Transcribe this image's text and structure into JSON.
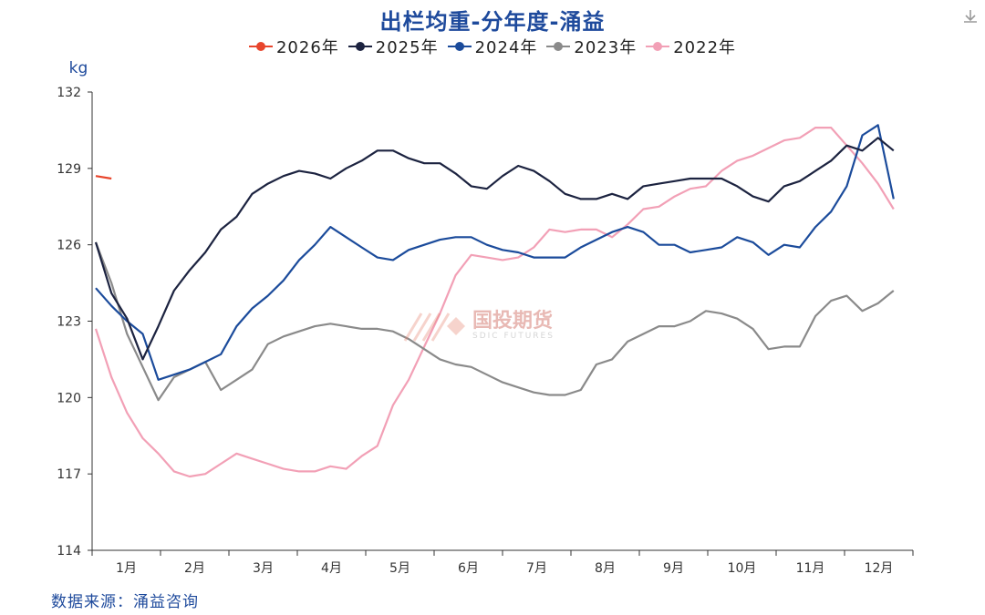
{
  "chart_data": {
    "type": "line",
    "title": "出栏均重-分年度-涌益",
    "ylabel": "kg",
    "ylim": [
      114,
      132
    ],
    "yticks": [
      114,
      117,
      120,
      123,
      126,
      129,
      132
    ],
    "xlim": [
      0,
      52
    ],
    "categories": [
      "1月",
      "2月",
      "3月",
      "4月",
      "5月",
      "6月",
      "7月",
      "8月",
      "9月",
      "10月",
      "11月",
      "12月"
    ],
    "grid": false,
    "legend": "top",
    "series": [
      {
        "name": "2026年",
        "color": "#e8452c",
        "x": [
          0,
          1
        ],
        "values": [
          128.7,
          128.6
        ]
      },
      {
        "name": "2025年",
        "color": "#1c2340",
        "x": [
          0,
          1,
          2,
          3,
          4,
          5,
          6,
          7,
          8,
          9,
          10,
          11,
          12,
          13,
          14,
          15,
          16,
          17,
          18,
          19,
          20,
          21,
          22,
          23,
          24,
          25,
          26,
          27,
          28,
          29,
          30,
          31,
          32,
          33,
          34,
          35,
          36,
          37,
          38,
          39,
          40,
          41,
          42,
          43,
          44,
          45,
          46,
          47,
          48,
          49,
          50,
          51
        ],
        "values": [
          126.1,
          124.1,
          123.1,
          121.5,
          122.8,
          124.2,
          125.0,
          125.7,
          126.6,
          127.1,
          128.0,
          128.4,
          128.7,
          128.9,
          128.8,
          128.6,
          129.0,
          129.3,
          129.7,
          129.7,
          129.4,
          129.2,
          129.2,
          128.8,
          128.3,
          128.2,
          128.7,
          129.1,
          128.9,
          128.5,
          128.0,
          127.8,
          127.8,
          128.0,
          127.8,
          128.3,
          128.4,
          128.5,
          128.6,
          128.6,
          128.6,
          128.3,
          127.9,
          127.7,
          128.3,
          128.5,
          128.9,
          129.3,
          129.9,
          129.7,
          130.2,
          129.7
        ]
      },
      {
        "name": "2024年",
        "color": "#1b4b9b",
        "x": [
          0,
          1,
          2,
          3,
          4,
          5,
          6,
          7,
          8,
          9,
          10,
          11,
          12,
          13,
          14,
          15,
          16,
          17,
          18,
          19,
          20,
          21,
          22,
          23,
          24,
          25,
          26,
          27,
          28,
          29,
          30,
          31,
          32,
          33,
          34,
          35,
          36,
          37,
          38,
          39,
          40,
          41,
          42,
          43,
          44,
          45,
          46,
          47,
          48,
          49,
          50,
          51
        ],
        "values": [
          124.3,
          123.6,
          123.0,
          122.5,
          120.7,
          120.9,
          121.1,
          121.4,
          121.7,
          122.8,
          123.5,
          124.0,
          124.6,
          125.4,
          126.0,
          126.7,
          126.3,
          125.9,
          125.5,
          125.4,
          125.8,
          126.0,
          126.2,
          126.3,
          126.3,
          126.0,
          125.8,
          125.7,
          125.5,
          125.5,
          125.5,
          125.9,
          126.2,
          126.5,
          126.7,
          126.5,
          126.0,
          126.0,
          125.7,
          125.8,
          125.9,
          126.3,
          126.1,
          125.6,
          126.0,
          125.9,
          126.7,
          127.3,
          128.3,
          130.3,
          130.7,
          127.8
        ]
      },
      {
        "name": "2023年",
        "color": "#8a8a8a",
        "x": [
          0,
          1,
          2,
          3,
          4,
          5,
          6,
          7,
          8,
          9,
          10,
          11,
          12,
          13,
          14,
          15,
          16,
          17,
          18,
          19,
          20,
          21,
          22,
          23,
          24,
          25,
          26,
          27,
          28,
          29,
          30,
          31,
          32,
          33,
          34,
          35,
          36,
          37,
          38,
          39,
          40,
          41,
          42,
          43,
          44,
          45,
          46,
          47,
          48,
          49,
          50,
          51
        ],
        "values": [
          126.1,
          124.5,
          122.5,
          121.2,
          119.9,
          120.8,
          121.1,
          121.4,
          120.3,
          120.7,
          121.1,
          122.1,
          122.4,
          122.6,
          122.8,
          122.9,
          122.8,
          122.7,
          122.7,
          122.6,
          122.3,
          121.9,
          121.5,
          121.3,
          121.2,
          120.9,
          120.6,
          120.4,
          120.2,
          120.1,
          120.1,
          120.3,
          121.3,
          121.5,
          122.2,
          122.5,
          122.8,
          122.8,
          123.0,
          123.4,
          123.3,
          123.1,
          122.7,
          121.9,
          122.0,
          122.0,
          123.2,
          123.8,
          124.0,
          123.4,
          123.7,
          124.2
        ]
      },
      {
        "name": "2022年",
        "color": "#f2a0b6",
        "x": [
          0,
          1,
          2,
          3,
          4,
          5,
          6,
          7,
          8,
          9,
          10,
          11,
          12,
          13,
          14,
          15,
          16,
          17,
          18,
          19,
          20,
          21,
          22,
          23,
          24,
          25,
          26,
          27,
          28,
          29,
          30,
          31,
          32,
          33,
          34,
          35,
          36,
          37,
          38,
          39,
          40,
          41,
          42,
          43,
          44,
          45,
          46,
          47,
          48,
          49,
          50,
          51
        ],
        "values": [
          122.7,
          120.8,
          119.4,
          118.4,
          117.8,
          117.1,
          116.9,
          117.0,
          117.4,
          117.8,
          117.6,
          117.4,
          117.2,
          117.1,
          117.1,
          117.3,
          117.2,
          117.7,
          118.1,
          119.7,
          120.7,
          122.0,
          123.3,
          124.8,
          125.6,
          125.5,
          125.4,
          125.5,
          125.9,
          126.6,
          126.5,
          126.6,
          126.6,
          126.3,
          126.8,
          127.4,
          127.5,
          127.9,
          128.2,
          128.3,
          128.9,
          129.3,
          129.5,
          129.8,
          130.1,
          130.2,
          130.6,
          130.6,
          129.9,
          129.2,
          128.4,
          127.4
        ]
      }
    ]
  },
  "source": "数据来源：涌益咨询",
  "watermark": {
    "name": "国投期货",
    "sub": "SDIC FUTURES"
  },
  "icons": {
    "download": "download-icon"
  }
}
